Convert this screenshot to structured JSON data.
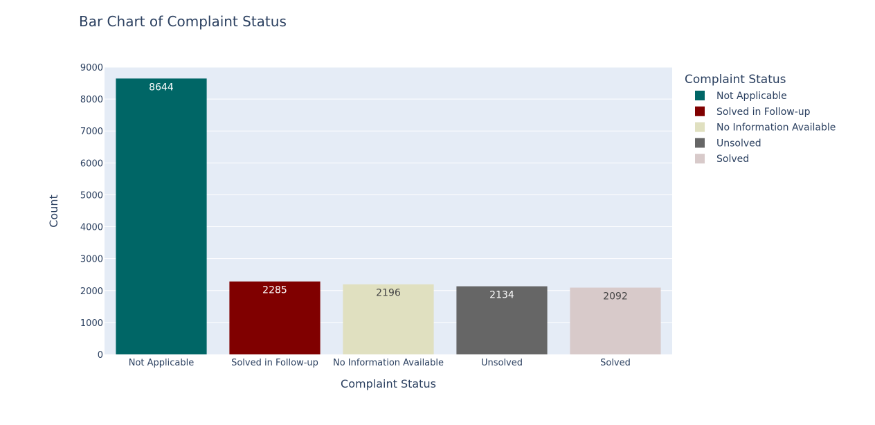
{
  "chart_data": {
    "type": "bar",
    "title": "Bar Chart of Complaint Status",
    "xlabel": "Complaint Status",
    "ylabel": "Count",
    "categories": [
      "Not Applicable",
      "Solved in Follow-up",
      "No Information Available",
      "Unsolved",
      "Solved"
    ],
    "values": [
      8644,
      2285,
      2196,
      2134,
      2092
    ],
    "colors": [
      "#006666",
      "#800000",
      "#E0E0C0",
      "#666666",
      "#D8CACA"
    ],
    "data_label_colors": [
      "#ffffff",
      "#ffffff",
      "#444444",
      "#ffffff",
      "#444444"
    ],
    "ylim": [
      0,
      9000
    ],
    "yticks": [
      0,
      1000,
      2000,
      3000,
      4000,
      5000,
      6000,
      7000,
      8000,
      9000
    ],
    "grid": true,
    "plot_background": "#E5ECF6",
    "legend": {
      "title": "Complaint Status",
      "placement": "right",
      "entries": [
        "Not Applicable",
        "Solved in Follow-up",
        "No Information Available",
        "Unsolved",
        "Solved"
      ]
    }
  }
}
